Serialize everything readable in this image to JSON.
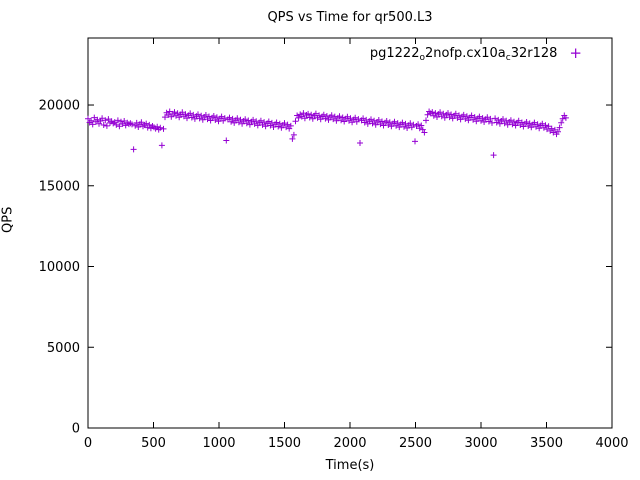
{
  "title": "QPS vs Time for qr500.L3",
  "axes": {
    "xlabel": "Time(s)",
    "ylabel": "QPS",
    "xticks": [
      0,
      500,
      1000,
      1500,
      2000,
      2500,
      3000,
      3500,
      4000
    ],
    "yticks": [
      0,
      5000,
      10000,
      15000,
      20000
    ],
    "xlim": [
      0,
      4000
    ],
    "ylim": [
      0,
      24150
    ]
  },
  "legend": {
    "parts": [
      {
        "t": "pg1222",
        "sub": false
      },
      {
        "t": "o",
        "sub": true
      },
      {
        "t": "2nofp.cx10a",
        "sub": false
      },
      {
        "t": "c",
        "sub": true
      },
      {
        "t": "32r128",
        "sub": false
      }
    ],
    "marker_glyph": "+"
  },
  "chart_data": {
    "type": "scatter",
    "title": "QPS vs Time for qr500.L3",
    "xlabel": "Time(s)",
    "ylabel": "QPS",
    "xlim": [
      0,
      4000
    ],
    "ylim": [
      0,
      24150
    ],
    "grid": false,
    "legend_position": "top-right-inside",
    "series": [
      {
        "name": "pg1222_o2nofp.cx10a_c32r128",
        "color": "#9400D3",
        "marker": "plus",
        "x_start": 0,
        "x_step": 12,
        "y": [
          19150,
          18920,
          19030,
          18800,
          19220,
          18970,
          19090,
          18840,
          19010,
          19180,
          18760,
          19060,
          18710,
          19130,
          18890,
          18990,
          18860,
          18940,
          18770,
          19050,
          18690,
          18960,
          18830,
          19010,
          18740,
          18900,
          18820,
          18870,
          18800,
          17250,
          18720,
          18890,
          18640,
          18810,
          18930,
          18680,
          18760,
          18850,
          18600,
          18770,
          18560,
          18700,
          18620,
          18540,
          18660,
          18480,
          18590,
          17500,
          18520,
          19250,
          19520,
          19380,
          19600,
          19270,
          19450,
          19560,
          19330,
          19490,
          19240,
          19410,
          19550,
          19300,
          19430,
          19190,
          19360,
          19480,
          19230,
          19390,
          19140,
          19310,
          19420,
          19170,
          19340,
          19090,
          19260,
          19380,
          19130,
          19290,
          19040,
          19210,
          19320,
          19070,
          19240,
          18990,
          19160,
          19280,
          19030,
          19190,
          17800,
          19110,
          19220,
          18970,
          19140,
          18890,
          19060,
          19180,
          18930,
          19090,
          18840,
          19010,
          19120,
          18870,
          19040,
          18790,
          18960,
          19080,
          18830,
          18990,
          18740,
          18910,
          19020,
          18770,
          18940,
          18690,
          18860,
          18980,
          18730,
          18890,
          18640,
          18810,
          18920,
          18670,
          18840,
          18590,
          18760,
          18880,
          18630,
          18790,
          18540,
          18710,
          17900,
          18150,
          19000,
          19350,
          19200,
          19420,
          19280,
          19500,
          19180,
          19380,
          19450,
          19230,
          19400,
          19150,
          19330,
          19470,
          19210,
          19360,
          19120,
          19290,
          19400,
          19160,
          19320,
          19080,
          19250,
          19370,
          19130,
          19280,
          19030,
          19200,
          19310,
          19060,
          19230,
          18980,
          19150,
          19270,
          19020,
          19180,
          18930,
          19100,
          19210,
          18960,
          19130,
          17650,
          19050,
          19170,
          18920,
          19080,
          18830,
          19000,
          19110,
          18860,
          19030,
          18780,
          18950,
          19070,
          18820,
          18980,
          18730,
          18900,
          19010,
          18760,
          18930,
          18680,
          18850,
          18970,
          18720,
          18880,
          18630,
          18800,
          18910,
          18660,
          18830,
          18580,
          18750,
          18870,
          18620,
          18780,
          17750,
          18700,
          18810,
          18560,
          18730,
          18480,
          18300,
          19050,
          19400,
          19600,
          19480,
          19560,
          19330,
          19500,
          19260,
          19440,
          19550,
          19300,
          19460,
          19210,
          19390,
          19500,
          19250,
          19410,
          19170,
          19340,
          19460,
          19200,
          19360,
          19110,
          19280,
          19390,
          19140,
          19300,
          19060,
          19230,
          19350,
          19090,
          19250,
          19000,
          19170,
          19280,
          19030,
          19190,
          18950,
          19120,
          19240,
          18980,
          19140,
          18890,
          16900,
          19170,
          18920,
          19080,
          18840,
          19010,
          19130,
          18870,
          19030,
          18780,
          18950,
          19060,
          18810,
          18970,
          18730,
          18900,
          19020,
          18760,
          18920,
          18670,
          18840,
          18950,
          18700,
          18860,
          18620,
          18790,
          18910,
          18650,
          18810,
          18560,
          18730,
          18840,
          18590,
          18750,
          18510,
          18680,
          18400,
          18540,
          18300,
          18460,
          18200,
          18350,
          18600,
          18900,
          19150,
          19350,
          19200
        ]
      }
    ]
  }
}
